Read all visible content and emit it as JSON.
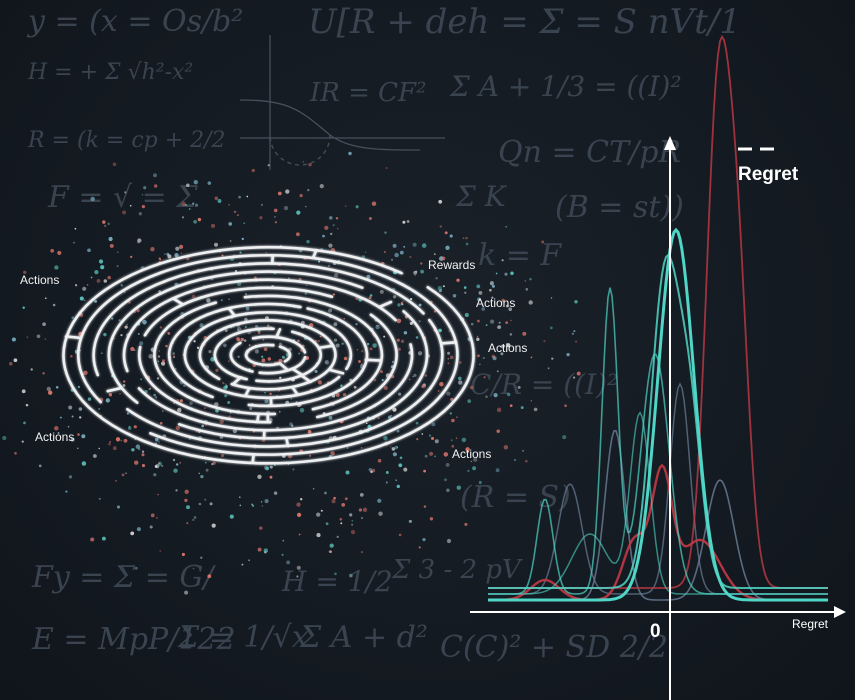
{
  "labels": {
    "actions_1": "Actions",
    "actions_2": "Actions",
    "actions_3": "Actions",
    "actions_4": "Actions",
    "actions_5": "Actions",
    "rewards": "Rewards"
  },
  "legend": {
    "label": "Regret"
  },
  "axis": {
    "x_label": "Regret",
    "origin_label": "0"
  },
  "formulas": [
    "y = (x = Os/b²",
    "H = + Σ √h²-x²",
    "R = (k = cp + 2/2",
    "F = √ = Σ",
    "U[R + deh = Σ = S nVt/1",
    "IR = CF²",
    "Σ A + 1/3 = ((I)²",
    "Qn = CT/pR",
    "(B = st))",
    "Σ K",
    "k = F",
    "C/R = ((I)²",
    "(R = S)",
    "Fy = Σ = G/",
    "H = 1/2",
    "Σ 3 - 2 pV",
    "E = MpP/122",
    "Σ = 1/√x",
    "Σ A + d²",
    "C(C)² + SD 2/2"
  ],
  "colors": {
    "background": "#141a22",
    "maze": "#eef0f2",
    "teal": "#4fd6c6",
    "red": "#c23a45",
    "slate": "#6b7f98",
    "axis": "#ffffff"
  }
}
